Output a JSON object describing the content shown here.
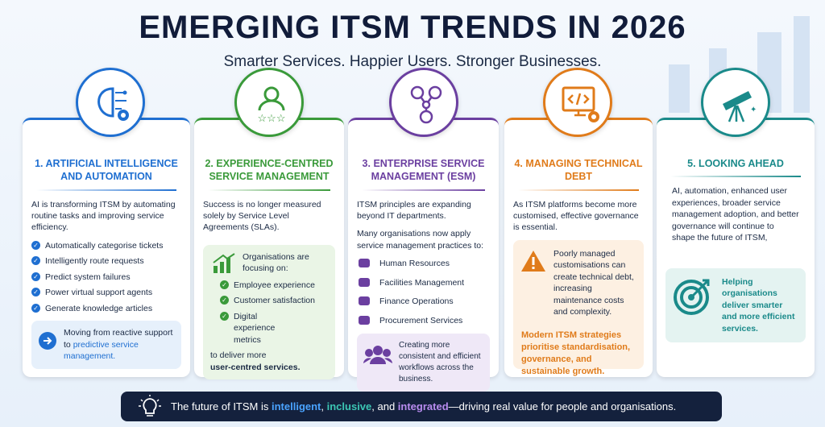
{
  "header": {
    "title": "EMERGING ITSM TRENDS IN 2026",
    "subtitle": "Smarter Services. Happier Users. Stronger Businesses."
  },
  "cards": [
    {
      "title": "1. ARTIFICIAL INTELLIGENCE AND AUTOMATION",
      "body": "AI is transforming ITSM by automating routine tasks and improving service efficiency.",
      "items": [
        "Automatically categorise tickets",
        "Intelligently route requests",
        "Predict system failures",
        "Power virtual support agents",
        "Generate knowledge articles"
      ],
      "callout": {
        "text": "Moving from reactive support to",
        "highlight": "predictive service management."
      }
    },
    {
      "title": "2. EXPERIENCE-CENTRED SERVICE MANAGEMENT",
      "body": "Success is no longer measured solely by Service Level Agreements (SLAs).",
      "box": {
        "intro": "Organisations are focusing on:",
        "items": [
          "Employee experience",
          "Customer satisfaction",
          "Digital experience metrics"
        ],
        "outro": "to deliver more",
        "emphasis": "user-centred services."
      }
    },
    {
      "title": "3. ENTERPRISE SERVICE MANAGEMENT (ESM)",
      "body": "ITSM principles are expanding beyond IT departments.",
      "lead": "Many organisations now apply service management practices to:",
      "items": [
        "Human Resources",
        "Facilities Management",
        "Finance Operations",
        "Procurement Services"
      ],
      "callout": {
        "text": "Creating more consistent and efficient workflows across the business."
      }
    },
    {
      "title": "4. MANAGING TECHNICAL DEBT",
      "body": "As ITSM platforms become more customised, effective governance is essential.",
      "warning": "Poorly managed customisations can create technical debt, increasing maintenance costs and complexity.",
      "strategy": "Modern ITSM strategies prioritise standardisation, governance, and sustainable growth."
    },
    {
      "title": "5. LOOKING AHEAD",
      "body": "AI, automation, enhanced user experiences, broader service management adoption, and better governance will continue to shape the future of ITSM,",
      "callout": {
        "text": "Helping organisations deliver smarter and more efficient services."
      }
    }
  ],
  "footer": {
    "parts": [
      "The future of ITSM is ",
      "intelligent",
      ", ",
      "inclusive",
      ", and ",
      "integrated",
      "—driving real value for people and organisations."
    ]
  }
}
